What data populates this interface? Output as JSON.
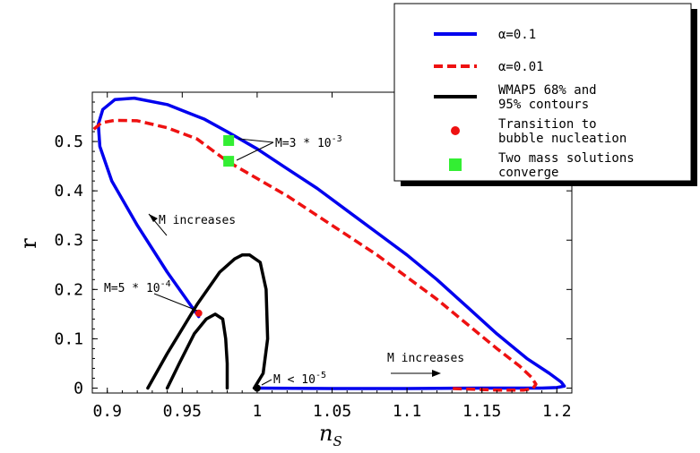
{
  "chart_data": {
    "type": "line",
    "xlabel": "n",
    "xlabel_sub": "S",
    "ylabel": "r",
    "xlim": [
      0.89,
      1.21
    ],
    "ylim": [
      -0.01,
      0.6
    ],
    "xticks": [
      0.9,
      0.95,
      1,
      1.05,
      1.1,
      1.15,
      1.2
    ],
    "xtick_labels": [
      "0.9",
      "0.95",
      "1",
      "1.05",
      "1.1",
      "1.15",
      "1.2"
    ],
    "yticks": [
      0,
      0.1,
      0.2,
      0.3,
      0.4,
      0.5
    ],
    "ytick_labels": [
      "0",
      "0.1",
      "0.2",
      "0.3",
      "0.4",
      "0.5"
    ],
    "grid": false,
    "legend_placement": "top-right",
    "series": [
      {
        "name": "α=0.1",
        "color": "#0000ee",
        "style": "solid",
        "x": [
          0.961,
          0.94,
          0.92,
          0.903,
          0.895,
          0.894,
          0.897,
          0.905,
          0.918,
          0.94,
          0.965,
          0.98,
          1.0,
          1.02,
          1.04,
          1.06,
          1.08,
          1.1,
          1.12,
          1.14,
          1.16,
          1.18,
          1.195,
          1.203,
          1.205,
          1.2,
          1.19,
          1.17,
          1.15,
          1.1,
          1.05,
          1.0
        ],
        "y": [
          0.145,
          0.235,
          0.33,
          0.42,
          0.49,
          0.535,
          0.565,
          0.585,
          0.588,
          0.575,
          0.545,
          0.52,
          0.485,
          0.445,
          0.405,
          0.36,
          0.315,
          0.27,
          0.22,
          0.165,
          0.11,
          0.06,
          0.03,
          0.012,
          0.004,
          0.001,
          0.0,
          0.0,
          0.0,
          -0.001,
          -0.001,
          0.0
        ]
      },
      {
        "name": "α=0.01",
        "color": "#ee1111",
        "style": "dashed",
        "x": [
          0.891,
          0.896,
          0.905,
          0.92,
          0.94,
          0.96,
          0.98,
          1.0,
          1.02,
          1.04,
          1.06,
          1.08,
          1.1,
          1.12,
          1.14,
          1.16,
          1.175,
          1.183,
          1.186,
          1.184,
          1.178,
          1.17,
          1.16,
          1.15,
          1.13
        ],
        "y": [
          0.525,
          0.538,
          0.543,
          0.542,
          0.528,
          0.505,
          0.46,
          0.425,
          0.39,
          0.35,
          0.31,
          0.27,
          0.225,
          0.18,
          0.13,
          0.08,
          0.045,
          0.022,
          0.008,
          -0.001,
          -0.004,
          -0.004,
          -0.004,
          -0.003,
          -0.001
        ]
      },
      {
        "name": "WMAP5 68% and 95% contours",
        "color": "#000000",
        "style": "solid",
        "contours": [
          {
            "x": [
              0.927,
              0.94,
              0.96,
              0.975,
              0.985,
              0.99,
              0.995,
              1.002,
              1.006,
              1.007,
              1.004,
              0.998
            ],
            "y": [
              0.0,
              0.07,
              0.17,
              0.235,
              0.262,
              0.27,
              0.27,
              0.255,
              0.2,
              0.1,
              0.03,
              0.0
            ]
          },
          {
            "x": [
              0.94,
              0.948,
              0.958,
              0.966,
              0.972,
              0.977,
              0.979,
              0.98,
              0.98
            ],
            "y": [
              0.0,
              0.05,
              0.11,
              0.14,
              0.15,
              0.14,
              0.1,
              0.05,
              0.0
            ]
          }
        ]
      }
    ],
    "markers": [
      {
        "label": "Transition to bubble nucleation",
        "x": 0.961,
        "y": 0.152,
        "color": "#ee1111",
        "shape": "circle"
      },
      {
        "label": "Two mass solutions converge",
        "x": 0.981,
        "y": 0.502,
        "color": "#33ee33",
        "shape": "square"
      },
      {
        "label": "Two mass solutions converge",
        "x": 0.981,
        "y": 0.46,
        "color": "#33ee33",
        "shape": "square"
      },
      {
        "label": "M < 10^-5",
        "x": 1.0,
        "y": 0.0,
        "color": "#000000",
        "shape": "circle"
      }
    ],
    "annotations": {
      "m3": {
        "prefix": "M=3 * 10",
        "sup": "-3"
      },
      "m5": {
        "prefix": "M=5 * 10",
        "sup": "-4"
      },
      "mlow": {
        "prefix": "M < 10",
        "sup": "-5"
      },
      "inc1": "M increases",
      "inc2": "M increases"
    },
    "legend": [
      {
        "text": "α=0.1",
        "kind": "line",
        "color": "#0000ee",
        "dash": false
      },
      {
        "text": "α=0.01",
        "kind": "line",
        "color": "#ee1111",
        "dash": true
      },
      {
        "text": [
          "WMAP5 68% and",
          " 95% contours"
        ],
        "kind": "line",
        "color": "#000000",
        "dash": false
      },
      {
        "text": [
          "Transition to",
          "bubble nucleation"
        ],
        "kind": "dot",
        "color": "#ee1111"
      },
      {
        "text": [
          "Two mass solutions",
          "converge"
        ],
        "kind": "square",
        "color": "#33ee33"
      }
    ]
  }
}
